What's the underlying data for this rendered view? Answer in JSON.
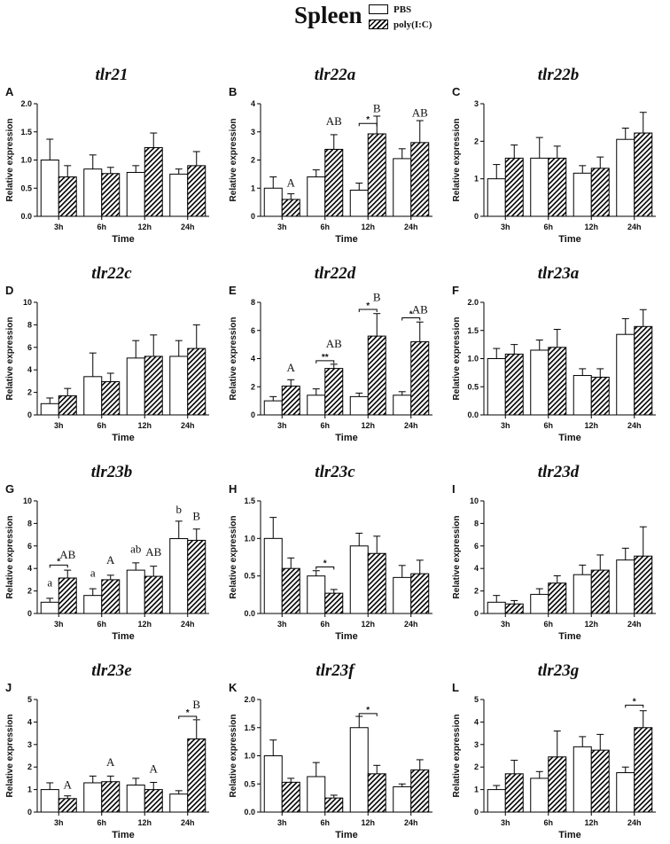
{
  "title": "Spleen",
  "legend": {
    "pbs": "PBS",
    "pic": "poly(I:C)"
  },
  "colors": {
    "bar_stroke": "#000000",
    "pbs_fill": "#ffffff",
    "hatch": "#000000"
  },
  "chart_data": [
    {
      "type": "bar",
      "panel": "A",
      "title": "tlr21",
      "xlabel": "Time",
      "ylabel": "Relative expression",
      "categories": [
        "3h",
        "6h",
        "12h",
        "24h"
      ],
      "ylim": [
        0,
        2
      ],
      "yticks": [
        "0.0",
        "0.5",
        "1.0",
        "1.5",
        "2.0"
      ],
      "series": [
        {
          "name": "PBS",
          "values": [
            1.0,
            0.84,
            0.78,
            0.75
          ],
          "errors": [
            0.37,
            0.25,
            0.12,
            0.09
          ]
        },
        {
          "name": "poly(I:C)",
          "values": [
            0.7,
            0.76,
            1.22,
            0.9
          ],
          "errors": [
            0.2,
            0.11,
            0.26,
            0.25
          ]
        }
      ],
      "annotations": []
    },
    {
      "type": "bar",
      "panel": "B",
      "title": "tlr22a",
      "xlabel": "Time",
      "ylabel": "Relative expression",
      "categories": [
        "3h",
        "6h",
        "12h",
        "24h"
      ],
      "ylim": [
        0,
        4
      ],
      "yticks": [
        "0",
        "1",
        "2",
        "3",
        "4"
      ],
      "series": [
        {
          "name": "PBS",
          "values": [
            1.0,
            1.4,
            0.93,
            2.05
          ],
          "errors": [
            0.4,
            0.25,
            0.25,
            0.35
          ]
        },
        {
          "name": "poly(I:C)",
          "values": [
            0.6,
            2.38,
            2.93,
            2.62
          ],
          "errors": [
            0.2,
            0.52,
            0.63,
            0.78
          ]
        }
      ],
      "annotations": [
        {
          "cat": 1,
          "series": 1,
          "text": "AB",
          "pos": 3.25
        },
        {
          "cat": 0,
          "series": 1,
          "text": "A",
          "pos": 1.05
        },
        {
          "cat": 2,
          "series": 1,
          "text": "B",
          "pos": 3.7
        },
        {
          "cat": 3,
          "series": 1,
          "text": "AB",
          "pos": 3.55
        },
        {
          "cat": 2,
          "type": "sig",
          "text": "*",
          "pos": 3.3
        }
      ]
    },
    {
      "type": "bar",
      "panel": "C",
      "title": "tlr22b",
      "xlabel": "Time",
      "ylabel": "Relative expression",
      "categories": [
        "3h",
        "6h",
        "12h",
        "24h"
      ],
      "ylim": [
        0,
        3
      ],
      "yticks": [
        "0",
        "1",
        "2",
        "3"
      ],
      "series": [
        {
          "name": "PBS",
          "values": [
            1.0,
            1.55,
            1.15,
            2.05
          ],
          "errors": [
            0.38,
            0.55,
            0.2,
            0.3
          ]
        },
        {
          "name": "poly(I:C)",
          "values": [
            1.55,
            1.55,
            1.28,
            2.22
          ],
          "errors": [
            0.35,
            0.32,
            0.3,
            0.55
          ]
        }
      ],
      "annotations": []
    },
    {
      "type": "bar",
      "panel": "D",
      "title": "tlr22c",
      "xlabel": "Time",
      "ylabel": "Relative expression",
      "categories": [
        "3h",
        "6h",
        "12h",
        "24h"
      ],
      "ylim": [
        0,
        10
      ],
      "yticks": [
        "0",
        "2",
        "4",
        "6",
        "8",
        "10"
      ],
      "series": [
        {
          "name": "PBS",
          "values": [
            1.0,
            3.4,
            5.05,
            5.2
          ],
          "errors": [
            0.5,
            2.1,
            1.55,
            1.4
          ]
        },
        {
          "name": "poly(I:C)",
          "values": [
            1.7,
            2.95,
            5.2,
            5.9
          ],
          "errors": [
            0.65,
            0.75,
            1.9,
            2.1
          ]
        }
      ],
      "annotations": []
    },
    {
      "type": "bar",
      "panel": "E",
      "title": "tlr22d",
      "xlabel": "Time",
      "ylabel": "Relative expression",
      "categories": [
        "3h",
        "6h",
        "12h",
        "24h"
      ],
      "ylim": [
        0,
        8
      ],
      "yticks": [
        "0",
        "2",
        "4",
        "6",
        "8"
      ],
      "series": [
        {
          "name": "PBS",
          "values": [
            1.0,
            1.4,
            1.3,
            1.4
          ],
          "errors": [
            0.3,
            0.45,
            0.25,
            0.25
          ]
        },
        {
          "name": "poly(I:C)",
          "values": [
            2.05,
            3.3,
            5.6,
            5.2
          ],
          "errors": [
            0.45,
            0.3,
            1.6,
            1.4
          ]
        }
      ],
      "annotations": [
        {
          "cat": 0,
          "series": 1,
          "text": "A",
          "pos": 3.1
        },
        {
          "cat": 1,
          "series": 1,
          "text": "AB",
          "pos": 4.8
        },
        {
          "cat": 1,
          "type": "sig",
          "text": "**",
          "pos": 3.85
        },
        {
          "cat": 2,
          "series": 1,
          "text": "B",
          "pos": 8.1
        },
        {
          "cat": 2,
          "type": "sig",
          "text": "*",
          "pos": 7.5
        },
        {
          "cat": 3,
          "series": 1,
          "text": "AB",
          "pos": 7.2
        },
        {
          "cat": 3,
          "type": "sig",
          "text": "*",
          "pos": 6.9
        }
      ]
    },
    {
      "type": "bar",
      "panel": "F",
      "title": "tlr23a",
      "xlabel": "Time",
      "ylabel": "Relative expression",
      "categories": [
        "3h",
        "6h",
        "12h",
        "24h"
      ],
      "ylim": [
        0,
        2
      ],
      "yticks": [
        "0.0",
        "0.5",
        "1.0",
        "1.5",
        "2.0"
      ],
      "series": [
        {
          "name": "PBS",
          "values": [
            1.0,
            1.15,
            0.7,
            1.43
          ],
          "errors": [
            0.18,
            0.18,
            0.12,
            0.28
          ]
        },
        {
          "name": "poly(I:C)",
          "values": [
            1.08,
            1.2,
            0.67,
            1.57
          ],
          "errors": [
            0.17,
            0.32,
            0.15,
            0.3
          ]
        }
      ],
      "annotations": []
    },
    {
      "type": "bar",
      "panel": "G",
      "title": "tlr23b",
      "xlabel": "Time",
      "ylabel": "Relative expression",
      "categories": [
        "3h",
        "6h",
        "12h",
        "24h"
      ],
      "ylim": [
        0,
        10
      ],
      "yticks": [
        "0",
        "2",
        "4",
        "6",
        "8",
        "10"
      ],
      "series": [
        {
          "name": "PBS",
          "values": [
            1.0,
            1.6,
            3.85,
            6.65
          ],
          "errors": [
            0.35,
            0.6,
            0.65,
            1.55
          ]
        },
        {
          "name": "poly(I:C)",
          "values": [
            3.15,
            3.0,
            3.3,
            6.5
          ],
          "errors": [
            0.7,
            0.4,
            0.9,
            1.0
          ]
        }
      ],
      "annotations": [
        {
          "cat": 0,
          "series": 0,
          "text": "a",
          "pos": 2.4
        },
        {
          "cat": 0,
          "series": 1,
          "text": "AB",
          "pos": 4.9
        },
        {
          "cat": 0,
          "type": "sig",
          "text": "*",
          "pos": 4.3
        },
        {
          "cat": 1,
          "series": 0,
          "text": "a",
          "pos": 3.25
        },
        {
          "cat": 1,
          "series": 1,
          "text": "A",
          "pos": 4.4
        },
        {
          "cat": 2,
          "series": 0,
          "text": "ab",
          "pos": 5.4
        },
        {
          "cat": 2,
          "series": 1,
          "text": "AB",
          "pos": 5.1
        },
        {
          "cat": 3,
          "series": 0,
          "text": "b",
          "pos": 8.9
        },
        {
          "cat": 3,
          "series": 1,
          "text": "B",
          "pos": 8.3
        }
      ]
    },
    {
      "type": "bar",
      "panel": "H",
      "title": "tlr23c",
      "xlabel": "Time",
      "ylabel": "Relative expression",
      "categories": [
        "3h",
        "6h",
        "12h",
        "24h"
      ],
      "ylim": [
        0,
        1.5
      ],
      "yticks": [
        "0.0",
        "0.5",
        "1.0",
        "1.5"
      ],
      "series": [
        {
          "name": "PBS",
          "values": [
            1.0,
            0.5,
            0.9,
            0.48
          ],
          "errors": [
            0.28,
            0.07,
            0.17,
            0.16
          ]
        },
        {
          "name": "poly(I:C)",
          "values": [
            0.6,
            0.27,
            0.8,
            0.53
          ],
          "errors": [
            0.14,
            0.05,
            0.23,
            0.18
          ]
        }
      ],
      "annotations": [
        {
          "cat": 1,
          "type": "sig",
          "text": "*",
          "pos": 0.62
        }
      ]
    },
    {
      "type": "bar",
      "panel": "I",
      "title": "tlr23d",
      "xlabel": "Time",
      "ylabel": "Relative expression",
      "categories": [
        "3h",
        "6h",
        "12h",
        "24h"
      ],
      "ylim": [
        0,
        10
      ],
      "yticks": [
        "0",
        "2",
        "4",
        "6",
        "8",
        "10"
      ],
      "series": [
        {
          "name": "PBS",
          "values": [
            1.0,
            1.7,
            3.45,
            4.75
          ],
          "errors": [
            0.6,
            0.5,
            0.85,
            1.05
          ]
        },
        {
          "name": "poly(I:C)",
          "values": [
            0.85,
            2.7,
            3.85,
            5.1
          ],
          "errors": [
            0.3,
            0.65,
            1.35,
            2.6
          ]
        }
      ],
      "annotations": []
    },
    {
      "type": "bar",
      "panel": "J",
      "title": "tlr23e",
      "xlabel": "Time",
      "ylabel": "Relative expression",
      "categories": [
        "3h",
        "6h",
        "12h",
        "24h"
      ],
      "ylim": [
        0,
        5
      ],
      "yticks": [
        "0",
        "1",
        "2",
        "3",
        "4",
        "5"
      ],
      "series": [
        {
          "name": "PBS",
          "values": [
            1.0,
            1.3,
            1.2,
            0.8
          ],
          "errors": [
            0.3,
            0.3,
            0.3,
            0.15
          ]
        },
        {
          "name": "poly(I:C)",
          "values": [
            0.6,
            1.35,
            1.0,
            3.25
          ],
          "errors": [
            0.12,
            0.25,
            0.32,
            0.85
          ]
        }
      ],
      "annotations": [
        {
          "cat": 0,
          "series": 1,
          "text": "A",
          "pos": 1.05
        },
        {
          "cat": 1,
          "series": 1,
          "text": "A",
          "pos": 2.05
        },
        {
          "cat": 2,
          "series": 1,
          "text": "A",
          "pos": 1.75
        },
        {
          "cat": 3,
          "series": 1,
          "text": "B",
          "pos": 4.6
        },
        {
          "cat": 3,
          "type": "sig",
          "text": "*",
          "pos": 4.25
        }
      ]
    },
    {
      "type": "bar",
      "panel": "K",
      "title": "tlr23f",
      "xlabel": "Time",
      "ylabel": "Relative expression",
      "categories": [
        "3h",
        "6h",
        "12h",
        "24h"
      ],
      "ylim": [
        0,
        2
      ],
      "yticks": [
        "0.0",
        "0.5",
        "1.0",
        "1.5",
        "2.0"
      ],
      "series": [
        {
          "name": "PBS",
          "values": [
            1.0,
            0.63,
            1.5,
            0.45
          ],
          "errors": [
            0.28,
            0.25,
            0.2,
            0.05
          ]
        },
        {
          "name": "poly(I:C)",
          "values": [
            0.53,
            0.25,
            0.68,
            0.75
          ],
          "errors": [
            0.07,
            0.05,
            0.15,
            0.18
          ]
        }
      ],
      "annotations": [
        {
          "cat": 2,
          "type": "sig",
          "text": "*",
          "pos": 1.75
        }
      ]
    },
    {
      "type": "bar",
      "panel": "L",
      "title": "tlr23g",
      "xlabel": "Time",
      "ylabel": "Relative expression",
      "categories": [
        "3h",
        "6h",
        "12h",
        "24h"
      ],
      "ylim": [
        0,
        5
      ],
      "yticks": [
        "0",
        "1",
        "2",
        "3",
        "4",
        "5"
      ],
      "series": [
        {
          "name": "PBS",
          "values": [
            1.0,
            1.5,
            2.9,
            1.75
          ],
          "errors": [
            0.18,
            0.3,
            0.45,
            0.25
          ]
        },
        {
          "name": "poly(I:C)",
          "values": [
            1.7,
            2.45,
            2.75,
            3.75
          ],
          "errors": [
            0.6,
            1.15,
            0.7,
            0.75
          ]
        }
      ],
      "annotations": [
        {
          "cat": 3,
          "type": "sig",
          "text": "*",
          "pos": 4.75
        }
      ]
    }
  ]
}
